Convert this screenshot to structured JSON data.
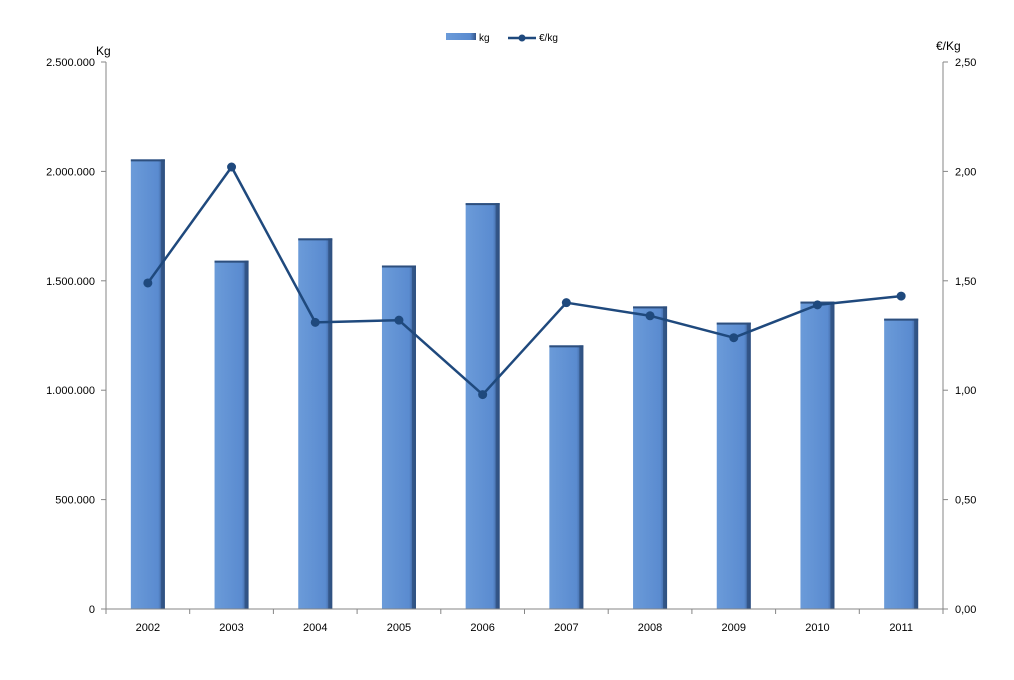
{
  "chart_data": {
    "type": "bar",
    "categories": [
      "2002",
      "2003",
      "2004",
      "2005",
      "2006",
      "2007",
      "2008",
      "2009",
      "2010",
      "2011"
    ],
    "series": [
      {
        "name": "kg",
        "type": "bar",
        "axis": "left",
        "values": [
          2055000,
          1592000,
          1694000,
          1570000,
          1855000,
          1205000,
          1383000,
          1309000,
          1405000,
          1327000
        ]
      },
      {
        "name": "€/kg",
        "type": "line",
        "axis": "right",
        "values": [
          1.49,
          2.02,
          1.31,
          1.32,
          0.98,
          1.4,
          1.34,
          1.24,
          1.39,
          1.43
        ]
      }
    ],
    "ylabel": "Kg",
    "y2label": "€/Kg",
    "ylim": [
      0,
      2500000
    ],
    "y2lim": [
      0,
      2.5
    ],
    "yticks": [
      "0",
      "500.000",
      "1.000.000",
      "1.500.000",
      "2.000.000",
      "2.500.000"
    ],
    "y2ticks": [
      "0,00",
      "0,50",
      "1,00",
      "1,50",
      "2,00",
      "2,50"
    ],
    "grid": false,
    "legend_position": "top-center",
    "colors": {
      "bar": "#5b8ccf",
      "bar_edge": "#2e4f7d",
      "line": "#1f497d"
    }
  }
}
